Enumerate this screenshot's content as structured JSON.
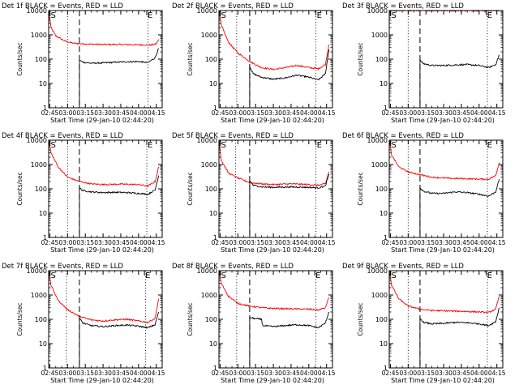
{
  "figure": {
    "xlabel": "Start Time (29-Jan-10 02:44:20)",
    "ylabel": "Counts/sec",
    "x_ticks": [
      "02:45",
      "03:00",
      "03:15",
      "03:30",
      "03:45",
      "04:00",
      "04:15"
    ],
    "y_ticks": [
      "1",
      "10",
      "100",
      "1000",
      "10000"
    ],
    "marker_s": "S",
    "marker_e": "E",
    "colors": {
      "events": "#000000",
      "lld": "#ff0000",
      "axes": "#000000"
    }
  },
  "chart_data": [
    {
      "type": "line",
      "title": "Det 1f BLACK = Events, RED = LLD",
      "xlabel": "Start Time (29-Jan-10 02:44:20)",
      "ylabel": "Counts/sec",
      "ylog": true,
      "ylim": [
        1,
        10000
      ],
      "xlim": [
        "02:44",
        "04:20"
      ],
      "markers": {
        "dotted": [
          "03:00",
          "04:08"
        ],
        "dashed": [
          "03:10"
        ],
        "S": "02:45",
        "E": "04:07"
      },
      "series": [
        {
          "name": "BLACK = Events",
          "x": [
            "03:10",
            "03:13",
            "03:20",
            "03:30",
            "03:40",
            "03:50",
            "04:00",
            "04:08",
            "04:14",
            "04:17"
          ],
          "values": [
            90,
            75,
            68,
            70,
            75,
            78,
            80,
            72,
            115,
            280
          ]
        },
        {
          "name": "RED = LLD",
          "x": [
            "02:44",
            "02:46",
            "02:50",
            "02:58",
            "03:05",
            "03:15",
            "03:30",
            "03:45",
            "04:00",
            "04:10",
            "04:15",
            "04:17"
          ],
          "values": [
            10000,
            2000,
            900,
            550,
            450,
            420,
            400,
            400,
            390,
            380,
            420,
            650
          ]
        }
      ]
    },
    {
      "type": "line",
      "title": "Det 2f BLACK = Events, RED = LLD",
      "xlabel": "Start Time (29-Jan-10 02:44:20)",
      "ylabel": "Counts/sec",
      "ylog": true,
      "ylim": [
        1,
        10000
      ],
      "xlim": [
        "02:44",
        "04:20"
      ],
      "markers": {
        "dotted": [
          "02:59",
          "04:06"
        ],
        "dashed": [
          "03:10"
        ],
        "S": "02:45",
        "E": "04:06"
      },
      "series": [
        {
          "name": "BLACK = Events",
          "x": [
            "03:10",
            "03:13",
            "03:20",
            "03:30",
            "03:40",
            "03:50",
            "04:00",
            "04:08",
            "04:14",
            "04:17"
          ],
          "values": [
            50,
            25,
            18,
            15,
            17,
            22,
            18,
            14,
            25,
            250
          ]
        },
        {
          "name": "RED = LLD",
          "x": [
            "02:44",
            "02:46",
            "02:52",
            "03:00",
            "03:10",
            "03:20",
            "03:30",
            "03:40",
            "03:50",
            "04:00",
            "04:08",
            "04:14",
            "04:17"
          ],
          "values": [
            10000,
            2500,
            500,
            180,
            80,
            45,
            38,
            45,
            55,
            45,
            40,
            60,
            400
          ]
        }
      ]
    },
    {
      "type": "line",
      "title": "Det 3f BLACK = Events, RED = LLD",
      "xlabel": "Start Time (29-Jan-10 02:44:20)",
      "ylabel": "Counts/sec",
      "ylog": true,
      "ylim": [
        1,
        10000
      ],
      "xlim": [
        "02:44",
        "04:20"
      ],
      "markers": {
        "dotted": [
          "03:00",
          "04:07"
        ],
        "dashed": [
          "03:10"
        ],
        "S": "02:45",
        "E": "04:06"
      },
      "series": [
        {
          "name": "BLACK = Events",
          "x": [
            "03:10",
            "03:13",
            "03:20",
            "03:30",
            "03:40",
            "03:50",
            "04:00",
            "04:08",
            "04:14",
            "04:17"
          ],
          "values": [
            90,
            65,
            55,
            55,
            58,
            60,
            55,
            45,
            60,
            150
          ]
        },
        {
          "name": "RED = LLD",
          "x": [
            "02:44",
            "04:17"
          ],
          "values": [
            10000,
            10000
          ]
        }
      ]
    },
    {
      "type": "line",
      "title": "Det 4f BLACK = Events, RED = LLD",
      "xlabel": "Start Time (29-Jan-10 02:44:20)",
      "ylabel": "Counts/sec",
      "ylog": true,
      "ylim": [
        1,
        10000
      ],
      "xlim": [
        "02:44",
        "04:20"
      ],
      "markers": {
        "dotted": [
          "03:00",
          "04:07"
        ],
        "dashed": [
          "03:10"
        ],
        "S": "02:45",
        "E": "04:07"
      },
      "series": [
        {
          "name": "BLACK = Events",
          "x": [
            "03:10",
            "03:13",
            "03:20",
            "03:30",
            "03:40",
            "03:50",
            "04:00",
            "04:08",
            "04:14",
            "04:17"
          ],
          "values": [
            110,
            85,
            75,
            70,
            72,
            70,
            65,
            60,
            90,
            350
          ]
        },
        {
          "name": "RED = LLD",
          "x": [
            "02:44",
            "02:46",
            "02:52",
            "03:00",
            "03:10",
            "03:20",
            "03:30",
            "03:45",
            "04:00",
            "04:08",
            "04:14",
            "04:17"
          ],
          "values": [
            10000,
            3000,
            800,
            300,
            200,
            160,
            150,
            155,
            150,
            130,
            200,
            800
          ]
        }
      ]
    },
    {
      "type": "line",
      "title": "Det 5f BLACK = Events, RED = LLD",
      "xlabel": "Start Time (29-Jan-10 02:44:20)",
      "ylabel": "Counts/sec",
      "ylog": true,
      "ylim": [
        1,
        10000
      ],
      "xlim": [
        "02:44",
        "04:20"
      ],
      "markers": {
        "dotted": [
          "02:58",
          "04:06"
        ],
        "dashed": [
          "03:10"
        ],
        "S": "02:45",
        "E": "04:06"
      },
      "series": [
        {
          "name": "BLACK = Events",
          "x": [
            "03:10",
            "03:13",
            "03:20",
            "03:30",
            "03:45",
            "04:00",
            "04:08",
            "04:14",
            "04:17"
          ],
          "values": [
            220,
            140,
            120,
            115,
            120,
            115,
            110,
            130,
            400
          ]
        },
        {
          "name": "RED = LLD",
          "x": [
            "02:44",
            "02:46",
            "02:52",
            "03:00",
            "03:10",
            "03:20",
            "03:30",
            "03:45",
            "04:00",
            "04:08",
            "04:14",
            "04:17"
          ],
          "values": [
            10000,
            1500,
            450,
            280,
            180,
            160,
            150,
            160,
            150,
            140,
            160,
            500
          ]
        }
      ]
    },
    {
      "type": "line",
      "title": "Det 6f BLACK = Events, RED = LLD",
      "xlabel": "Start Time (29-Jan-10 02:44:20)",
      "ylabel": "Counts/sec",
      "ylog": true,
      "ylim": [
        1,
        10000
      ],
      "xlim": [
        "02:44",
        "04:20"
      ],
      "markers": {
        "dotted": [
          "03:00",
          "04:07"
        ],
        "dashed": [
          "03:10"
        ],
        "S": "02:45",
        "E": "04:06"
      },
      "series": [
        {
          "name": "BLACK = Events",
          "x": [
            "03:10",
            "03:13",
            "03:20",
            "03:30",
            "03:40",
            "03:50",
            "04:00",
            "04:08",
            "04:14",
            "04:17"
          ],
          "values": [
            110,
            80,
            65,
            65,
            75,
            70,
            60,
            50,
            75,
            250
          ]
        },
        {
          "name": "RED = LLD",
          "x": [
            "02:44",
            "02:46",
            "02:52",
            "03:00",
            "03:10",
            "03:20",
            "03:35",
            "03:50",
            "04:00",
            "04:08",
            "04:14",
            "04:17"
          ],
          "values": [
            10000,
            2500,
            800,
            500,
            380,
            300,
            270,
            260,
            250,
            250,
            350,
            1200
          ]
        }
      ]
    },
    {
      "type": "line",
      "title": "Det 7f BLACK = Events, RED = LLD",
      "xlabel": "Start Time (29-Jan-10 02:44:20)",
      "ylabel": "Counts/sec",
      "ylog": true,
      "ylim": [
        1,
        10000
      ],
      "xlim": [
        "02:44",
        "04:20"
      ],
      "markers": {
        "dotted": [
          "02:59",
          "04:06"
        ],
        "dashed": [
          "03:10"
        ],
        "S": "02:45",
        "E": "04:05"
      },
      "series": [
        {
          "name": "BLACK = Events",
          "x": [
            "03:10",
            "03:13",
            "03:20",
            "03:30",
            "03:40",
            "03:50",
            "04:00",
            "04:08",
            "04:14",
            "04:17"
          ],
          "values": [
            110,
            70,
            55,
            50,
            55,
            58,
            52,
            45,
            60,
            200
          ]
        },
        {
          "name": "RED = LLD",
          "x": [
            "02:44",
            "02:46",
            "02:52",
            "03:00",
            "03:10",
            "03:20",
            "03:30",
            "03:40",
            "03:50",
            "04:00",
            "04:08",
            "04:14",
            "04:17"
          ],
          "values": [
            10000,
            2500,
            600,
            250,
            130,
            95,
            85,
            95,
            100,
            85,
            75,
            110,
            700
          ]
        }
      ]
    },
    {
      "type": "line",
      "title": "Det 8f BLACK = Events, RED = LLD",
      "xlabel": "Start Time (29-Jan-10 02:44:20)",
      "ylabel": "Counts/sec",
      "ylog": true,
      "ylim": [
        1,
        10000
      ],
      "xlim": [
        "02:44",
        "04:20"
      ],
      "markers": {
        "dotted": [
          "02:59",
          "04:06"
        ],
        "dashed": [
          "03:10"
        ],
        "S": "02:45",
        "E": "04:05"
      },
      "series": [
        {
          "name": "BLACK = Events",
          "x": [
            "03:10",
            "03:13",
            "03:20",
            "03:21",
            "03:30",
            "03:40",
            "03:50",
            "04:00",
            "04:08",
            "04:14",
            "04:17"
          ],
          "values": [
            120,
            110,
            100,
            55,
            50,
            55,
            60,
            55,
            45,
            70,
            200
          ]
        },
        {
          "name": "RED = LLD",
          "x": [
            "02:44",
            "02:46",
            "02:52",
            "03:00",
            "03:10",
            "03:20",
            "03:30",
            "03:45",
            "04:00",
            "04:08",
            "04:14",
            "04:17"
          ],
          "values": [
            10000,
            3000,
            900,
            450,
            350,
            300,
            280,
            270,
            260,
            240,
            300,
            800
          ]
        }
      ]
    },
    {
      "type": "line",
      "title": "Det 9f BLACK = Events, RED = LLD",
      "xlabel": "Start Time (29-Jan-10 02:44:20)",
      "ylabel": "Counts/sec",
      "ylog": true,
      "ylim": [
        1,
        10000
      ],
      "xlim": [
        "02:44",
        "04:20"
      ],
      "markers": {
        "dotted": [
          "03:00",
          "04:07"
        ],
        "dashed": [
          "03:10"
        ],
        "S": "02:45",
        "E": "04:06"
      },
      "series": [
        {
          "name": "BLACK = Events",
          "x": [
            "03:10",
            "03:13",
            "03:20",
            "03:30",
            "03:40",
            "03:50",
            "04:00",
            "04:08",
            "04:14",
            "04:17"
          ],
          "values": [
            110,
            75,
            65,
            68,
            75,
            72,
            65,
            55,
            80,
            300
          ]
        },
        {
          "name": "RED = LLD",
          "x": [
            "02:44",
            "02:46",
            "02:52",
            "03:00",
            "03:10",
            "03:20",
            "03:35",
            "03:50",
            "04:00",
            "04:08",
            "04:14",
            "04:17"
          ],
          "values": [
            10000,
            2500,
            700,
            350,
            260,
            230,
            220,
            210,
            200,
            190,
            260,
            900
          ]
        }
      ]
    }
  ]
}
